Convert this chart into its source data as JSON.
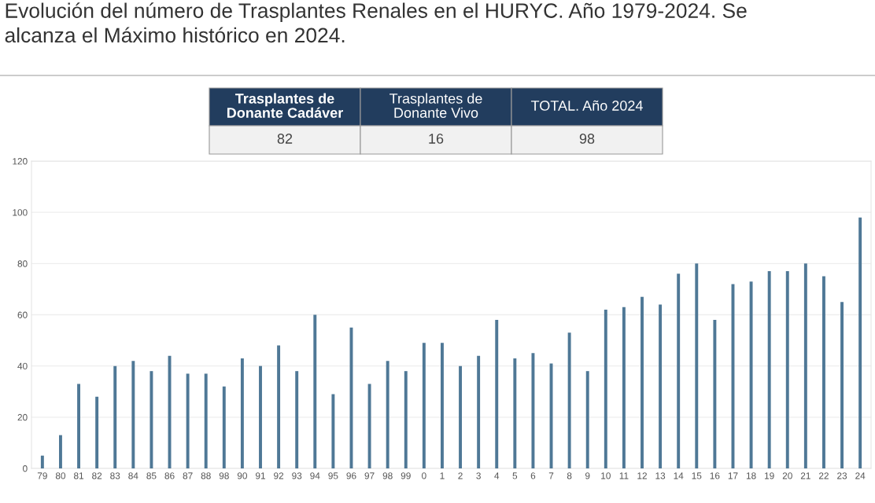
{
  "chart_data": {
    "type": "bar",
    "title": "Evolución del número de Trasplantes Renales en el HURYC. Año 1979-2024. Se\nalcanza el Máximo histórico en 2024.",
    "categories": [
      "79",
      "80",
      "81",
      "82",
      "83",
      "84",
      "85",
      "86",
      "87",
      "88",
      "98",
      "90",
      "91",
      "92",
      "93",
      "94",
      "95",
      "96",
      "97",
      "98",
      "99",
      "0",
      "1",
      "2",
      "3",
      "4",
      "5",
      "6",
      "7",
      "8",
      "9",
      "10",
      "11",
      "12",
      "13",
      "14",
      "15",
      "16",
      "17",
      "18",
      "19",
      "20",
      "21",
      "22",
      "23",
      "24"
    ],
    "values": [
      5,
      13,
      33,
      28,
      40,
      42,
      38,
      44,
      37,
      37,
      32,
      43,
      40,
      48,
      38,
      60,
      29,
      55,
      33,
      42,
      38,
      49,
      49,
      40,
      44,
      58,
      43,
      45,
      41,
      53,
      38,
      62,
      63,
      67,
      64,
      76,
      80,
      58,
      72,
      73,
      77,
      77,
      80,
      75,
      65,
      98
    ],
    "color": "#4f7896",
    "ylim": [
      0,
      120
    ],
    "yticks": [
      0,
      20,
      40,
      60,
      80,
      100,
      120
    ],
    "grid": "y",
    "annotations": [
      "Trasplantes de\nDonante Cadáver",
      "Trasplantes de\nDonante Vivo",
      "TOTAL. Año 2024",
      "82",
      "16",
      "98"
    ]
  }
}
